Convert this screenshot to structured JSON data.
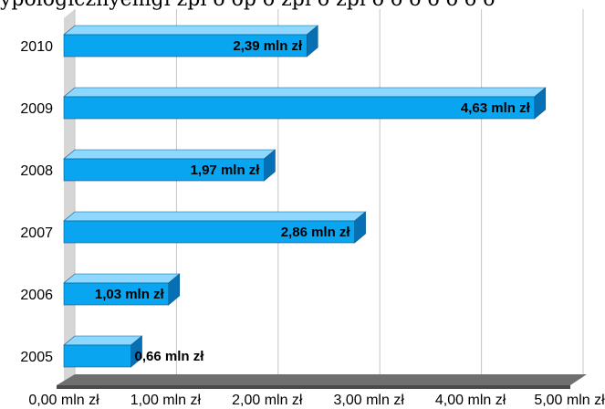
{
  "top_text": "ypologicznyemgi zpi o op o zpi o zpi o o o o o o o",
  "colors": {
    "bar_front": "#0aa5f0",
    "bar_top": "#8ed8ff",
    "bar_side": "#0770b5",
    "wall": "#d6d6d6",
    "floor": "#6f6f6f",
    "grid": "#c4c4c4"
  },
  "chart_data": {
    "type": "bar",
    "orientation": "horizontal",
    "three_d": true,
    "categories": [
      "2005",
      "2006",
      "2007",
      "2008",
      "2009",
      "2010"
    ],
    "values": [
      0.66,
      1.03,
      2.86,
      1.97,
      4.63,
      2.39
    ],
    "data_labels": [
      "0,66 mln zł",
      "1,03 mln zł",
      "2,86 mln zł",
      "1,97 mln zł",
      "4,63 mln zł",
      "2,39 mln zł"
    ],
    "x_tick_labels": [
      "0,00 mln zł",
      "1,00 mln zł",
      "2,00 mln zł",
      "3,00 mln zł",
      "4,00 mln zł",
      "5,00 mln zł"
    ],
    "xlim": [
      0,
      5
    ],
    "grid": true,
    "legend": "none"
  }
}
